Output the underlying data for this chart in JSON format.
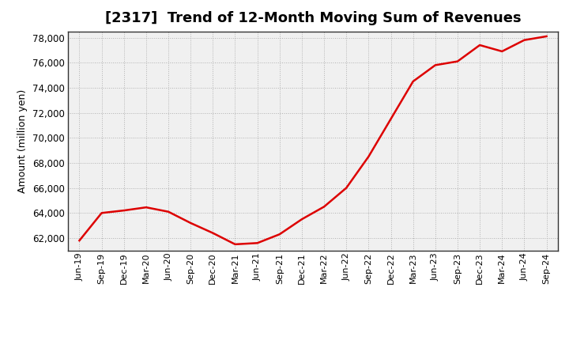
{
  "title": "[2317]  Trend of 12-Month Moving Sum of Revenues",
  "ylabel": "Amount (million yen)",
  "background_color": "#ffffff",
  "plot_bg_color": "#f0f0f0",
  "line_color": "#dd0000",
  "grid_color": "#aaaaaa",
  "ylim": [
    61000,
    78500
  ],
  "yticks": [
    62000,
    64000,
    66000,
    68000,
    70000,
    72000,
    74000,
    76000,
    78000
  ],
  "x_labels": [
    "Jun-19",
    "Sep-19",
    "Dec-19",
    "Mar-20",
    "Jun-20",
    "Sep-20",
    "Dec-20",
    "Mar-21",
    "Jun-21",
    "Sep-21",
    "Dec-21",
    "Mar-22",
    "Jun-22",
    "Sep-22",
    "Dec-22",
    "Mar-23",
    "Jun-23",
    "Sep-23",
    "Dec-23",
    "Mar-24",
    "Jun-24",
    "Sep-24"
  ],
  "values": [
    61800,
    64000,
    64200,
    64450,
    64100,
    63200,
    62400,
    61500,
    61600,
    62300,
    63500,
    64500,
    66000,
    68500,
    71500,
    74500,
    75800,
    76100,
    77400,
    76900,
    77800,
    78100
  ],
  "title_fontsize": 13,
  "ylabel_fontsize": 9,
  "tick_fontsize": 8.5,
  "xtick_fontsize": 8,
  "line_width": 1.8
}
